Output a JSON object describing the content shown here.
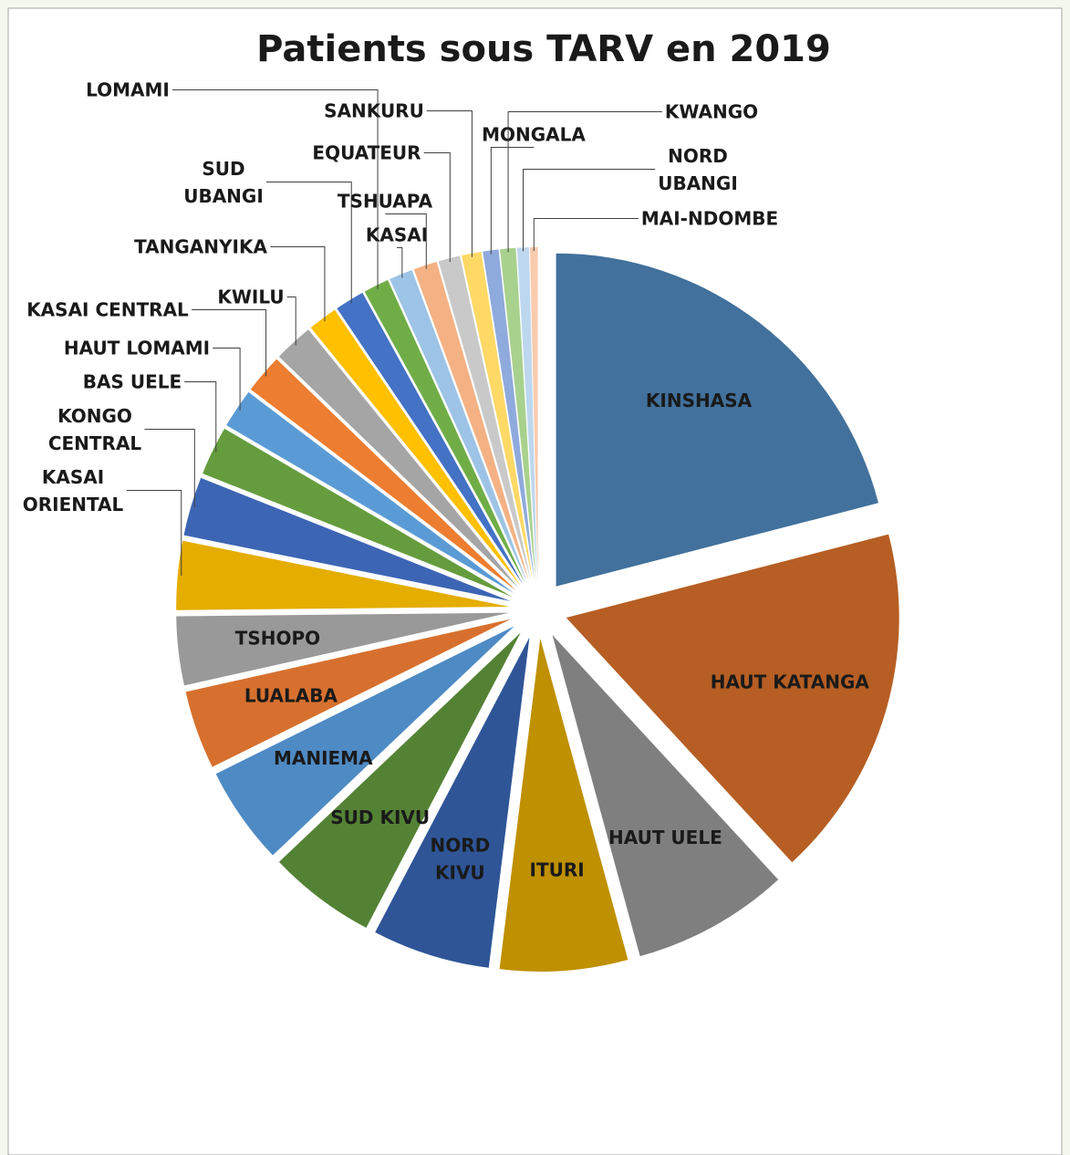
{
  "chart_data": {
    "type": "pie",
    "title": "Patients sous TARV en 2019",
    "categories": [
      "KINSHASA",
      "HAUT KATANGA",
      "HAUT UELE",
      "ITURI",
      "NORD KIVU",
      "SUD KIVU",
      "MANIEMA",
      "LUALABA",
      "TSHOPO",
      "KASAI ORIENTAL",
      "KONGO CENTRAL",
      "BAS UELE",
      "HAUT LOMAMI",
      "KASAI CENTRAL",
      "KWILU",
      "TANGANYIKA",
      "SUD UBANGI",
      "LOMAMI",
      "KASAI",
      "TSHUAPA",
      "EQUATEUR",
      "SANKURU",
      "MONGALA",
      "KWANGO",
      "NORD UBANGI",
      "MAI-NDOMBE"
    ],
    "values": [
      22,
      18,
      8,
      6.5,
      6,
      5.5,
      5,
      4,
      3.5,
      3.5,
      3,
      2.5,
      2,
      2,
      2,
      1.5,
      1.5,
      1.3,
      1.2,
      1.2,
      1.1,
      1,
      0.8,
      0.8,
      0.6,
      0.4
    ],
    "colors": [
      "#41719c",
      "#b65e23",
      "#7f7f7f",
      "#bf9000",
      "#2f5597",
      "#548235",
      "#4e8ac4",
      "#d7702e",
      "#999999",
      "#e5ad00",
      "#3c65b4",
      "#659c3e",
      "#5b9bd5",
      "#ed7d31",
      "#a5a5a5",
      "#ffc000",
      "#4472c4",
      "#70ad47",
      "#9dc3e6",
      "#f4b183",
      "#c9c9c9",
      "#ffd966",
      "#8faadc",
      "#a9d18e",
      "#bdd7ee",
      "#f8cbad"
    ]
  }
}
